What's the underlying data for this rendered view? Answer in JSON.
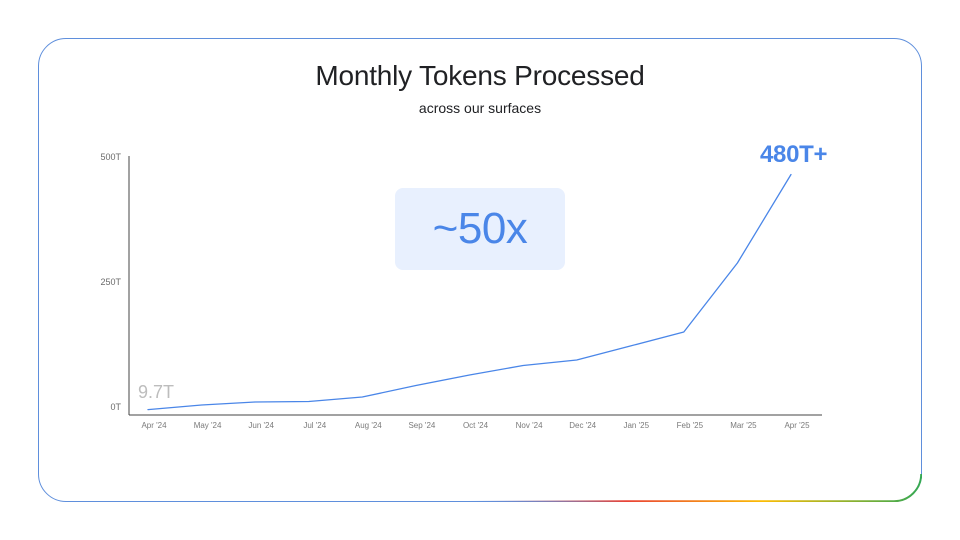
{
  "header": {
    "title": "Monthly Tokens Processed",
    "subtitle": "across our surfaces"
  },
  "callouts": {
    "multiplier": "~50x",
    "start_value_label": "9.7T",
    "end_value_label": "480T+"
  },
  "colors": {
    "line": "#4a86e8",
    "accent_blue": "#4a86e8",
    "badge_bg": "#e8f0fe",
    "start_label": "#bdbdbd",
    "card_border": "#5f8fdc"
  },
  "chart_data": {
    "type": "line",
    "categories": [
      "Apr '24",
      "May '24",
      "Jun '24",
      "Jul '24",
      "Aug '24",
      "Sep '24",
      "Oct '24",
      "Nov '24",
      "Dec '24",
      "Jan '25",
      "Feb '25",
      "Mar '25",
      "Apr '25"
    ],
    "series": [
      {
        "values": [
          9.7,
          19,
          25,
          26,
          35,
          58,
          79,
          98,
          109,
          137,
          165,
          303,
          480
        ]
      }
    ],
    "y_ticks": [
      {
        "value": 0,
        "label": "0T"
      },
      {
        "value": 250,
        "label": "250T"
      },
      {
        "value": 500,
        "label": "500T"
      }
    ],
    "ylim": [
      0,
      500
    ],
    "xlabel": "",
    "ylabel": "",
    "grid": false,
    "legend": "none"
  }
}
